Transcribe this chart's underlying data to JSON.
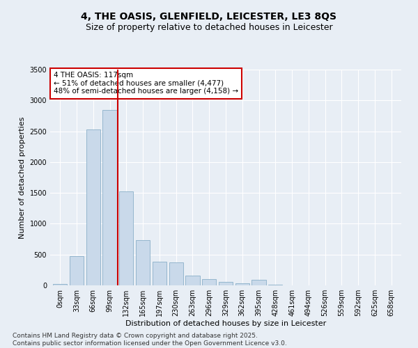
{
  "title_line1": "4, THE OASIS, GLENFIELD, LEICESTER, LE3 8QS",
  "title_line2": "Size of property relative to detached houses in Leicester",
  "xlabel": "Distribution of detached houses by size in Leicester",
  "ylabel": "Number of detached properties",
  "bar_color": "#c9d9ea",
  "bar_edge_color": "#8aafc8",
  "vline_color": "#cc0000",
  "vline_x": 3.5,
  "annotation_text": "4 THE OASIS: 117sqm\n← 51% of detached houses are smaller (4,477)\n48% of semi-detached houses are larger (4,158) →",
  "annotation_box_color": "#cc0000",
  "categories": [
    "0sqm",
    "33sqm",
    "66sqm",
    "99sqm",
    "132sqm",
    "165sqm",
    "197sqm",
    "230sqm",
    "263sqm",
    "296sqm",
    "329sqm",
    "362sqm",
    "395sqm",
    "428sqm",
    "461sqm",
    "494sqm",
    "526sqm",
    "559sqm",
    "592sqm",
    "625sqm",
    "658sqm"
  ],
  "values": [
    20,
    470,
    2530,
    2850,
    1520,
    730,
    380,
    370,
    155,
    100,
    55,
    30,
    90,
    10,
    5,
    5,
    5,
    5,
    5,
    2,
    2
  ],
  "ylim": [
    0,
    3500
  ],
  "yticks": [
    0,
    500,
    1000,
    1500,
    2000,
    2500,
    3000,
    3500
  ],
  "background_color": "#e8eef5",
  "plot_bg_color": "#e8eef5",
  "grid_color": "#ffffff",
  "footer_line1": "Contains HM Land Registry data © Crown copyright and database right 2025.",
  "footer_line2": "Contains public sector information licensed under the Open Government Licence v3.0.",
  "title_fontsize": 10,
  "subtitle_fontsize": 9,
  "axis_label_fontsize": 8,
  "tick_fontsize": 7,
  "footer_fontsize": 6.5,
  "annotation_fontsize": 7.5
}
